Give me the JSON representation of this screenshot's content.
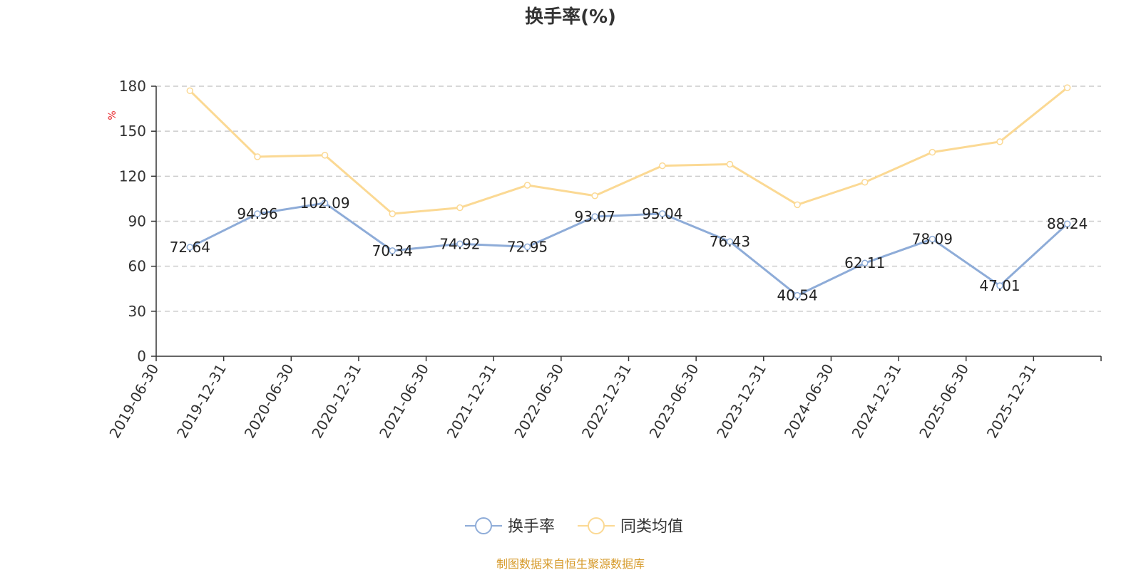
{
  "chart_data": {
    "type": "line",
    "title": "换手率(%)",
    "ylabel": "%",
    "xlabel": "",
    "ylim": [
      0,
      180
    ],
    "yticks": [
      "0",
      "30",
      "60",
      "90",
      "120",
      "150",
      "180"
    ],
    "grid": true,
    "legend_position": "bottom-center",
    "categories": [
      "2019-06-30",
      "2019-12-31",
      "2020-06-30",
      "2020-12-31",
      "2021-06-30",
      "2021-12-31",
      "2022-06-30",
      "2022-12-31",
      "2023-06-30",
      "2023-12-31",
      "2024-06-30",
      "2024-12-31",
      "2025-06-30",
      "2025-12-31"
    ],
    "series": [
      {
        "name": "换手率",
        "color": "#8eacd8",
        "show_labels": true,
        "values": [
          72.64,
          94.96,
          102.09,
          70.34,
          74.92,
          72.95,
          93.07,
          95.04,
          76.43,
          40.54,
          62.11,
          78.09,
          47.01,
          88.24
        ],
        "labels": [
          "72.64",
          "94.96",
          "102.09",
          "70.34",
          "74.92",
          "72.95",
          "93.07",
          "95.04",
          "76.43",
          "40.54",
          "62.11",
          "78.09",
          "47.01",
          "88.24"
        ]
      },
      {
        "name": "同类均值",
        "color": "#fbd994",
        "show_labels": false,
        "values": [
          177,
          133,
          134,
          95,
          99,
          114,
          107,
          127,
          128,
          101,
          116,
          136,
          143,
          179
        ]
      }
    ],
    "source": "制图数据来自恒生聚源数据库",
    "colors": {
      "axis": "#333333",
      "grid": "#cccccc",
      "unit": "#e8262a",
      "source": "#d69a2a"
    }
  }
}
